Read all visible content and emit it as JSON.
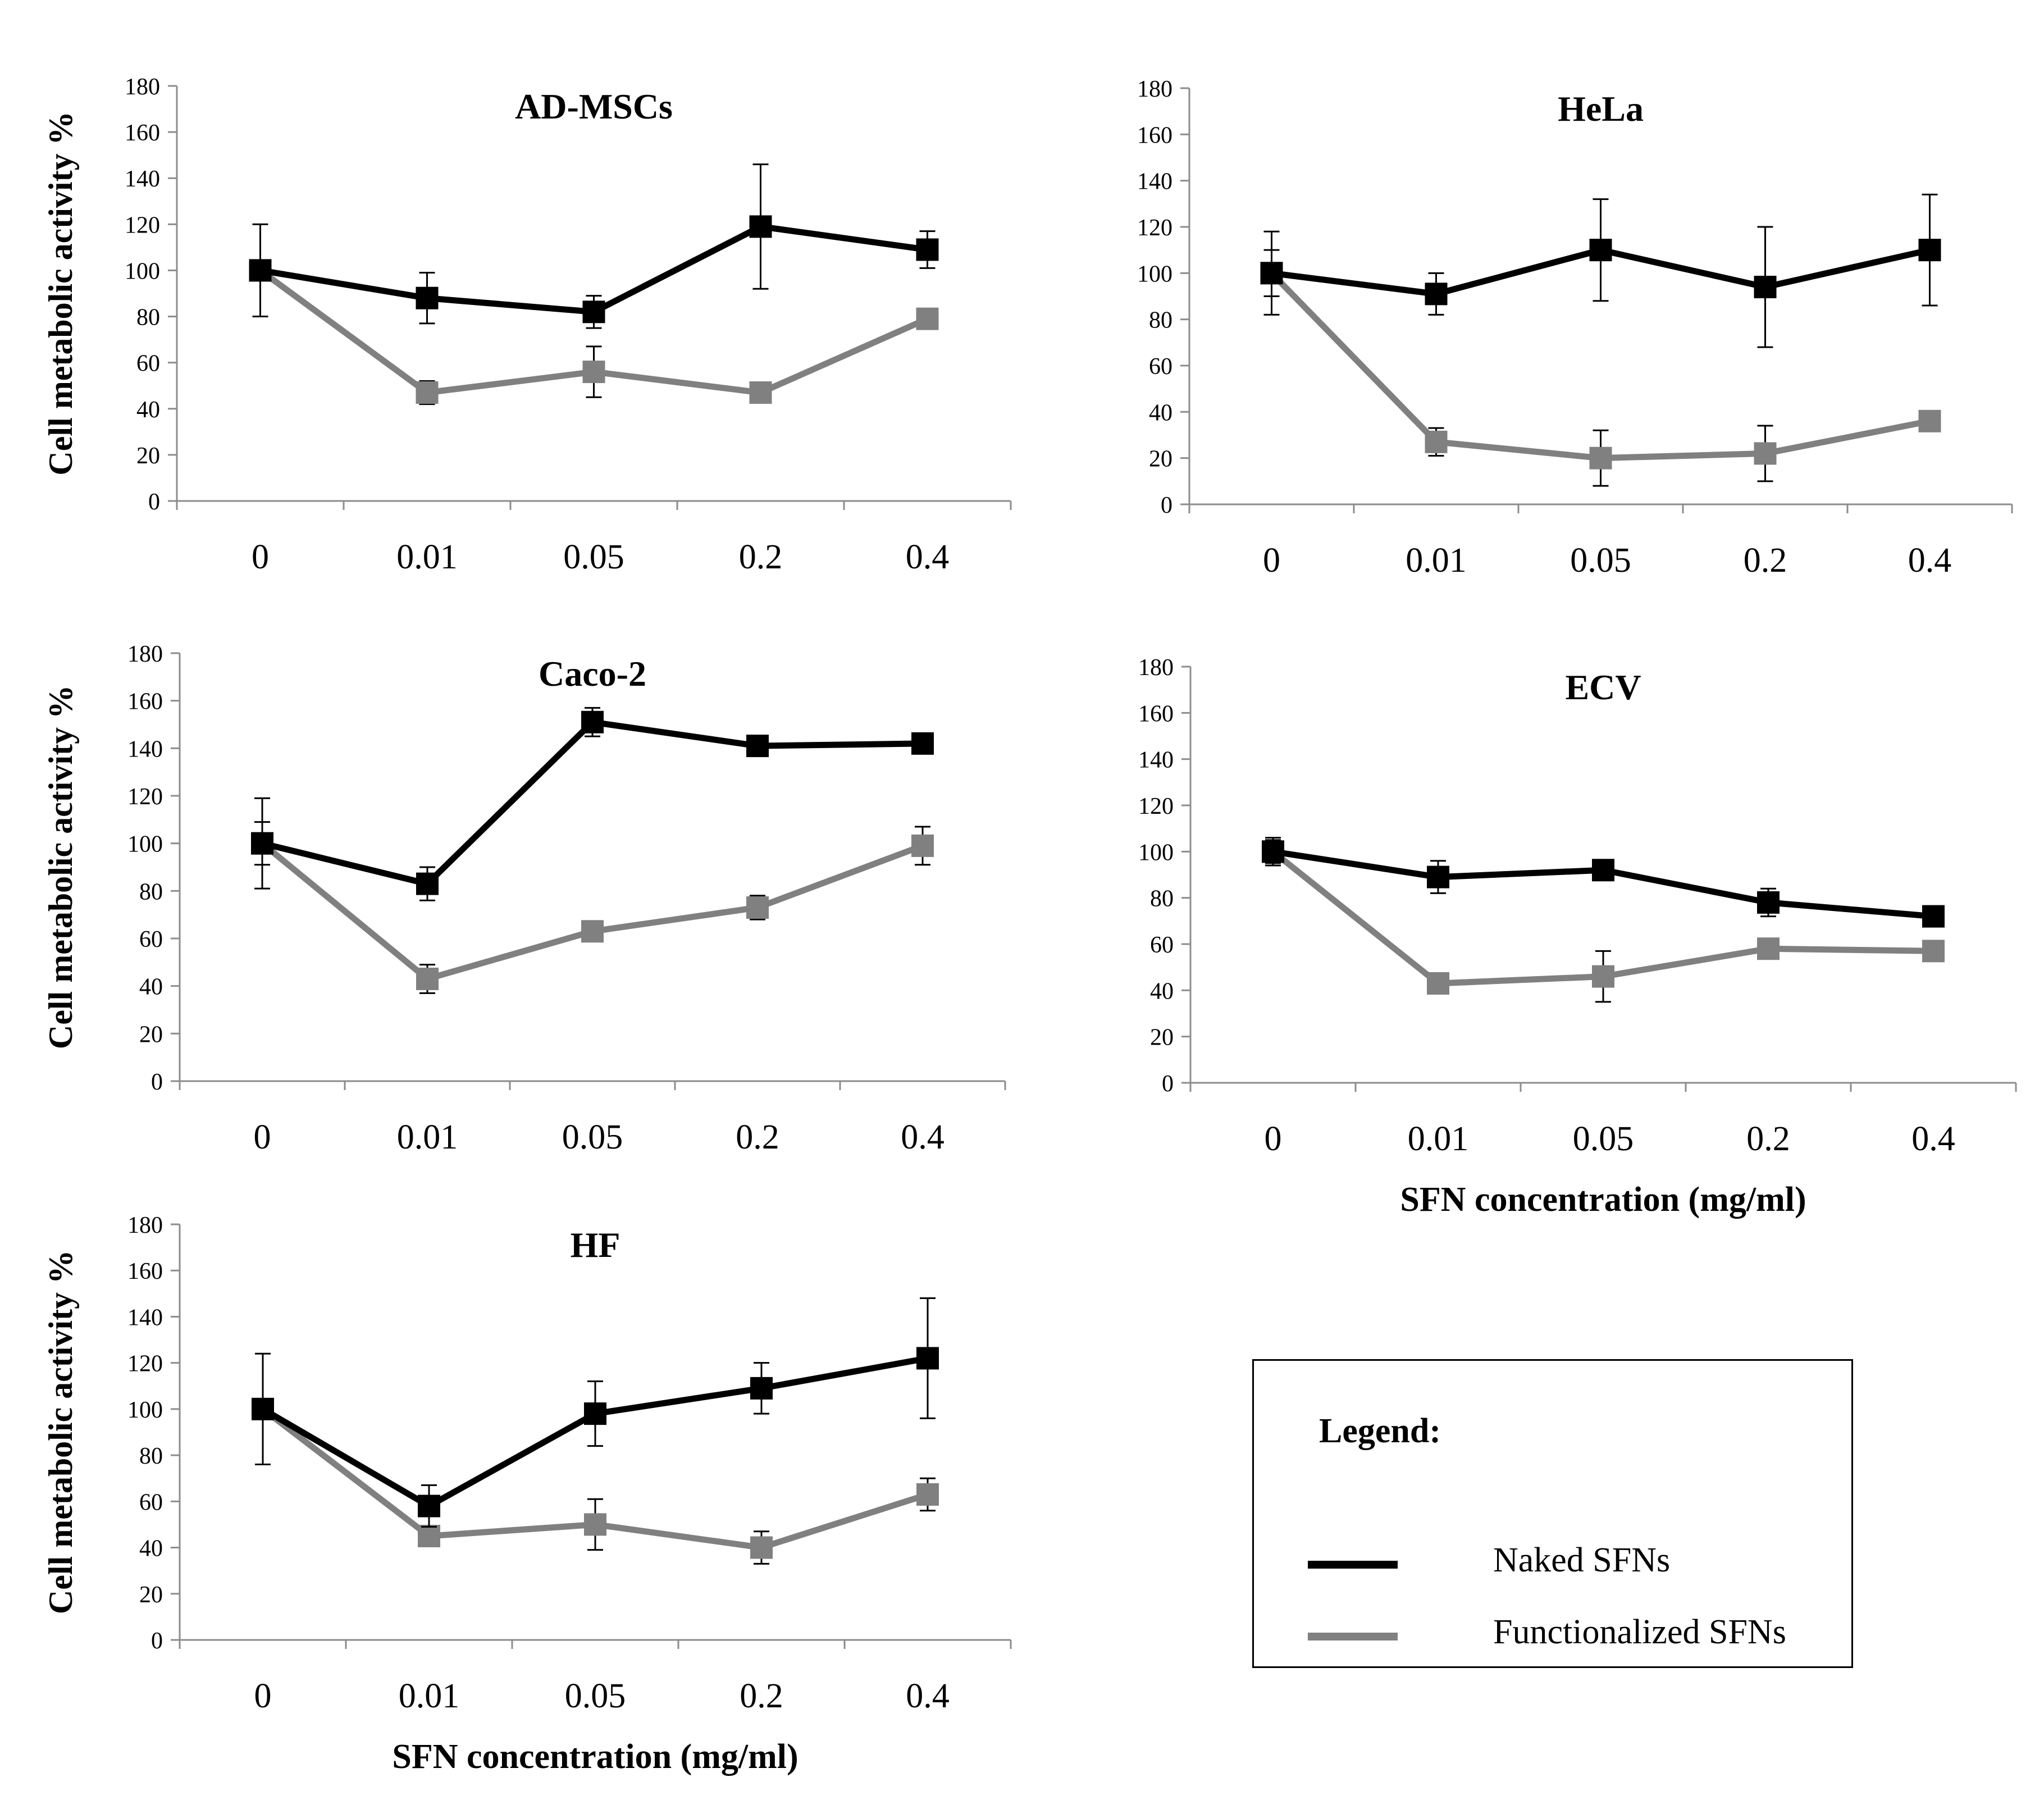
{
  "colors": {
    "naked": "#000000",
    "functionalized": "#808080"
  },
  "legend": {
    "title": "Legend:",
    "items": [
      {
        "label": "Naked SFNs",
        "color": "#000000"
      },
      {
        "label": "Functionalized SFNs",
        "color": "#808080"
      }
    ]
  },
  "chart_data": [
    {
      "type": "line",
      "title": "AD-MSCs",
      "categories": [
        "0",
        "0.01",
        "0.05",
        "0.2",
        "0.4"
      ],
      "ylabel": "Cell metabolic activity %",
      "xlabel": "",
      "ylim": [
        0,
        180
      ],
      "yticks": [
        "0",
        "20",
        "40",
        "60",
        "80",
        "100",
        "120",
        "140",
        "160",
        "180"
      ],
      "series": [
        {
          "name": "Naked SFNs",
          "values": [
            100,
            88,
            82,
            119,
            109
          ],
          "errors": [
            20,
            11,
            7,
            27,
            8
          ]
        },
        {
          "name": "Functionalized SFNs",
          "values": [
            100,
            47,
            56,
            47,
            79
          ],
          "errors": [
            3,
            5,
            11,
            3,
            3
          ]
        }
      ]
    },
    {
      "type": "line",
      "title": "HeLa",
      "categories": [
        "0",
        "0.01",
        "0.05",
        "0.2",
        "0.4"
      ],
      "ylabel": "",
      "xlabel": "",
      "ylim": [
        0,
        180
      ],
      "yticks": [
        "0",
        "20",
        "40",
        "60",
        "80",
        "100",
        "120",
        "140",
        "160",
        "180"
      ],
      "series": [
        {
          "name": "Naked SFNs",
          "values": [
            100,
            91,
            110,
            94,
            110
          ],
          "errors": [
            18,
            9,
            22,
            26,
            24
          ]
        },
        {
          "name": "Functionalized SFNs",
          "values": [
            100,
            27,
            20,
            22,
            36
          ],
          "errors": [
            10,
            6,
            12,
            12,
            3
          ]
        }
      ]
    },
    {
      "type": "line",
      "title": "Caco-2",
      "categories": [
        "0",
        "0.01",
        "0.05",
        "0.2",
        "0.4"
      ],
      "ylabel": "Cell metabolic activity %",
      "xlabel": "",
      "ylim": [
        0,
        180
      ],
      "yticks": [
        "0",
        "20",
        "40",
        "60",
        "80",
        "100",
        "120",
        "140",
        "160",
        "180"
      ],
      "series": [
        {
          "name": "Naked SFNs",
          "values": [
            100,
            83,
            151,
            141,
            142
          ],
          "errors": [
            19,
            7,
            6,
            3,
            3
          ]
        },
        {
          "name": "Functionalized SFNs",
          "values": [
            100,
            43,
            63,
            73,
            99
          ],
          "errors": [
            9,
            6,
            3,
            5,
            8
          ]
        }
      ]
    },
    {
      "type": "line",
      "title": "ECV",
      "categories": [
        "0",
        "0.01",
        "0.05",
        "0.2",
        "0.4"
      ],
      "ylabel": "",
      "xlabel": "SFN concentration (mg/ml)",
      "ylim": [
        0,
        180
      ],
      "yticks": [
        "0",
        "20",
        "40",
        "60",
        "80",
        "100",
        "120",
        "140",
        "160",
        "180"
      ],
      "series": [
        {
          "name": "Naked SFNs",
          "values": [
            100,
            89,
            92,
            78,
            72
          ],
          "errors": [
            6,
            7,
            3,
            6,
            3
          ]
        },
        {
          "name": "Functionalized SFNs",
          "values": [
            100,
            43,
            46,
            58,
            57
          ],
          "errors": [
            5,
            3,
            11,
            3,
            3
          ]
        }
      ]
    },
    {
      "type": "line",
      "title": "HF",
      "categories": [
        "0",
        "0.01",
        "0.05",
        "0.2",
        "0.4"
      ],
      "ylabel": "Cell metabolic activity %",
      "xlabel": "SFN concentration (mg/ml)",
      "ylim": [
        0,
        180
      ],
      "yticks": [
        "0",
        "20",
        "40",
        "60",
        "80",
        "100",
        "120",
        "140",
        "160",
        "180"
      ],
      "series": [
        {
          "name": "Naked SFNs",
          "values": [
            100,
            58,
            98,
            109,
            122
          ],
          "errors": [
            24,
            9,
            14,
            11,
            26
          ]
        },
        {
          "name": "Functionalized SFNs",
          "values": [
            100,
            45,
            50,
            40,
            63
          ],
          "errors": [
            4,
            3,
            11,
            7,
            7
          ]
        }
      ]
    }
  ]
}
